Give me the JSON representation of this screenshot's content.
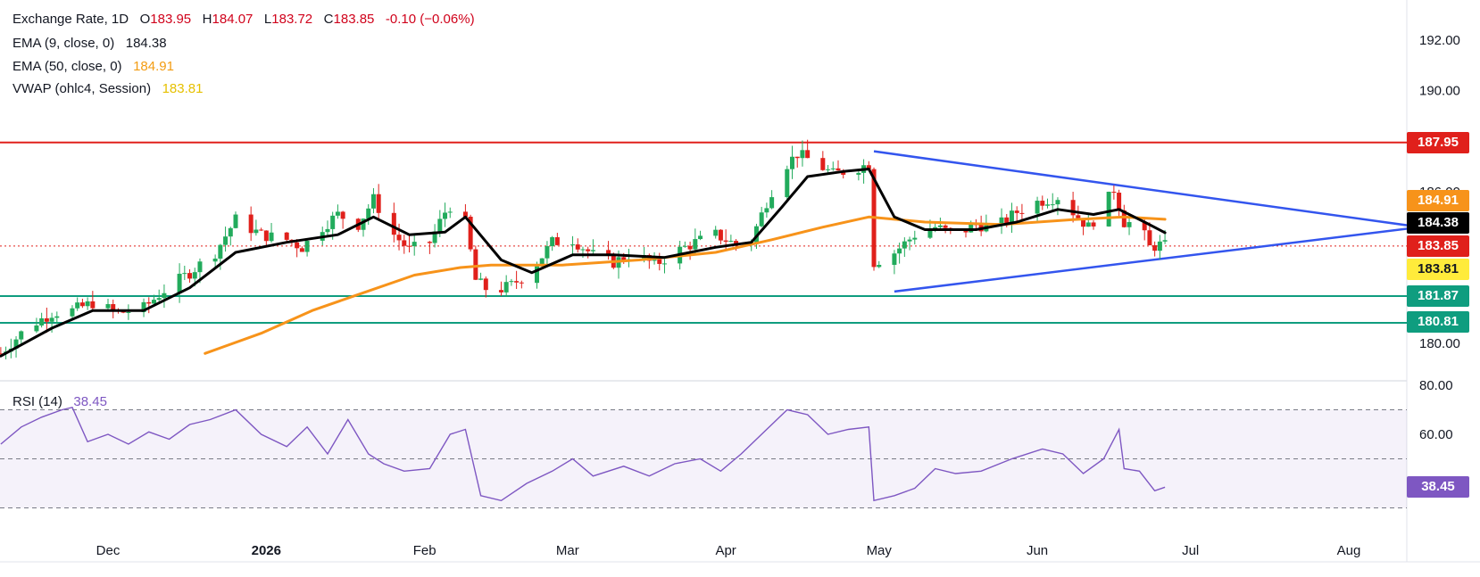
{
  "header": {
    "title": "Exchange Rate, 1D",
    "open_label": "O",
    "open": "183.95",
    "high_label": "H",
    "high": "184.07",
    "low_label": "L",
    "low": "183.72",
    "close_label": "C",
    "close": "183.85",
    "change": "-0.10 (−0.06%)",
    "ema9_label": "EMA (9, close, 0)",
    "ema9_value": "184.38",
    "ema50_label": "EMA (50, close, 0)",
    "ema50_value": "184.91",
    "vwap_label": "VWAP (ohlc4, Session)",
    "vwap_value": "183.81",
    "rsi_label": "RSI (14)",
    "rsi_value": "38.45"
  },
  "price_labels": [
    {
      "text": "187.95",
      "color": "#e0201b"
    },
    {
      "text": "184.91",
      "color": "#f7931a"
    },
    {
      "text": "184.38",
      "color": "#000000"
    },
    {
      "text": "183.85",
      "color": "#e0201b"
    },
    {
      "text": "183.81",
      "color": "#ffeb3b"
    },
    {
      "text": "181.87",
      "color": "#0f9d7f"
    },
    {
      "text": "180.81",
      "color": "#0f9d7f"
    },
    {
      "text": "38.45",
      "color": "#7e57c2"
    }
  ],
  "chart_data": {
    "type": "candlestick",
    "price_axis": {
      "ticks": [
        "192.00",
        "190.00",
        "186.00",
        "180.00"
      ],
      "range": [
        179.5,
        193.5
      ]
    },
    "rsi_axis": {
      "ticks": [
        "80.00",
        "60.00"
      ],
      "range": [
        20,
        80
      ],
      "bands": [
        70,
        50,
        30
      ]
    },
    "time_axis": [
      "Dec",
      "2026",
      "Feb",
      "Mar",
      "Apr",
      "May",
      "Jun",
      "Jul",
      "Aug"
    ],
    "horizontal_levels": [
      {
        "value": 187.95,
        "color": "#e0201b"
      },
      {
        "value": 181.87,
        "color": "#0f9d7f"
      },
      {
        "value": 180.81,
        "color": "#0f9d7f"
      }
    ],
    "triangle_upper": [
      [
        "2026-04-30",
        187.6
      ],
      [
        "2026-08-15",
        184.6
      ]
    ],
    "triangle_lower": [
      [
        "2026-05-04",
        182.05
      ],
      [
        "2026-08-15",
        184.6
      ]
    ],
    "close_path": [
      [
        "2025-11-10",
        179.6
      ],
      [
        "2025-11-15",
        180.6
      ],
      [
        "2025-11-20",
        181.2
      ],
      [
        "2025-11-24",
        181.3
      ],
      [
        "2025-11-28",
        181.6
      ],
      [
        "2025-12-03",
        181.2
      ],
      [
        "2025-12-08",
        181.4
      ],
      [
        "2025-12-12",
        182.1
      ],
      [
        "2025-12-17",
        182.8
      ],
      [
        "2025-12-22",
        183.6
      ],
      [
        "2025-12-26",
        184.9
      ],
      [
        "2025-12-31",
        184.3
      ],
      [
        "2026-01-05",
        184.1
      ],
      [
        "2026-01-08",
        183.8
      ],
      [
        "2026-01-12",
        184.6
      ],
      [
        "2026-01-15",
        185.1
      ],
      [
        "2026-01-19",
        184.7
      ],
      [
        "2026-01-22",
        185.7
      ],
      [
        "2026-01-26",
        184.3
      ],
      [
        "2026-01-29",
        183.7
      ],
      [
        "2026-02-02",
        184.0
      ],
      [
        "2026-02-05",
        185.2
      ],
      [
        "2026-02-08",
        185.9
      ],
      [
        "2026-02-11",
        182.5
      ],
      [
        "2026-02-14",
        182.0
      ],
      [
        "2026-02-18",
        182.3
      ],
      [
        "2026-02-22",
        182.9
      ],
      [
        "2026-02-26",
        184.0
      ],
      [
        "2026-03-02",
        184.1
      ],
      [
        "2026-03-06",
        183.5
      ],
      [
        "2026-03-10",
        183.2
      ],
      [
        "2026-03-14",
        183.6
      ],
      [
        "2026-03-18",
        183.1
      ],
      [
        "2026-03-22",
        183.6
      ],
      [
        "2026-03-26",
        184.0
      ],
      [
        "2026-03-30",
        184.3
      ],
      [
        "2026-04-03",
        183.9
      ],
      [
        "2026-04-06",
        184.1
      ],
      [
        "2026-04-09",
        185.6
      ],
      [
        "2026-04-12",
        186.9
      ],
      [
        "2026-04-15",
        187.5
      ],
      [
        "2026-04-18",
        187.2
      ],
      [
        "2026-04-22",
        186.7
      ],
      [
        "2026-04-26",
        186.9
      ],
      [
        "2026-04-29",
        187.1
      ],
      [
        "2026-04-30",
        183.2
      ],
      [
        "2026-05-04",
        183.6
      ],
      [
        "2026-05-08",
        184.3
      ],
      [
        "2026-05-12",
        184.6
      ],
      [
        "2026-05-16",
        184.3
      ],
      [
        "2026-05-20",
        184.7
      ],
      [
        "2026-05-24",
        184.6
      ],
      [
        "2026-05-28",
        185.2
      ],
      [
        "2026-06-01",
        185.6
      ],
      [
        "2026-06-05",
        185.8
      ],
      [
        "2026-06-08",
        185.2
      ],
      [
        "2026-06-11",
        184.6
      ],
      [
        "2026-06-14",
        185.4
      ],
      [
        "2026-06-16",
        186.1
      ],
      [
        "2026-06-18",
        184.8
      ],
      [
        "2026-06-21",
        184.7
      ],
      [
        "2026-06-23",
        183.8
      ],
      [
        "2026-06-25",
        183.9
      ],
      [
        "2026-06-26",
        183.85
      ]
    ],
    "ema9": [
      [
        "2025-11-10",
        179.5
      ],
      [
        "2025-11-20",
        180.6
      ],
      [
        "2025-11-28",
        181.3
      ],
      [
        "2025-12-08",
        181.3
      ],
      [
        "2025-12-17",
        182.2
      ],
      [
        "2025-12-26",
        183.6
      ],
      [
        "2026-01-05",
        184.0
      ],
      [
        "2026-01-15",
        184.3
      ],
      [
        "2026-01-22",
        185.0
      ],
      [
        "2026-01-29",
        184.3
      ],
      [
        "2026-02-05",
        184.4
      ],
      [
        "2026-02-09",
        185.0
      ],
      [
        "2026-02-16",
        183.3
      ],
      [
        "2026-02-22",
        182.8
      ],
      [
        "2026-03-02",
        183.5
      ],
      [
        "2026-03-10",
        183.5
      ],
      [
        "2026-03-20",
        183.4
      ],
      [
        "2026-03-30",
        183.8
      ],
      [
        "2026-04-06",
        184.0
      ],
      [
        "2026-04-12",
        185.4
      ],
      [
        "2026-04-17",
        186.6
      ],
      [
        "2026-04-24",
        186.8
      ],
      [
        "2026-04-29",
        186.9
      ],
      [
        "2026-05-04",
        185.0
      ],
      [
        "2026-05-10",
        184.5
      ],
      [
        "2026-05-20",
        184.5
      ],
      [
        "2026-05-28",
        184.8
      ],
      [
        "2026-06-05",
        185.3
      ],
      [
        "2026-06-12",
        185.1
      ],
      [
        "2026-06-17",
        185.3
      ],
      [
        "2026-06-22",
        184.8
      ],
      [
        "2026-06-26",
        184.38
      ]
    ],
    "ema50": [
      [
        "2025-12-20",
        179.6
      ],
      [
        "2025-12-31",
        180.4
      ],
      [
        "2026-01-10",
        181.3
      ],
      [
        "2026-01-20",
        182.0
      ],
      [
        "2026-01-30",
        182.7
      ],
      [
        "2026-02-08",
        183.0
      ],
      [
        "2026-02-14",
        183.1
      ],
      [
        "2026-02-28",
        183.1
      ],
      [
        "2026-03-15",
        183.3
      ],
      [
        "2026-03-30",
        183.6
      ],
      [
        "2026-04-10",
        184.1
      ],
      [
        "2026-04-20",
        184.6
      ],
      [
        "2026-04-29",
        185.0
      ],
      [
        "2026-05-10",
        184.8
      ],
      [
        "2026-05-25",
        184.7
      ],
      [
        "2026-06-08",
        184.9
      ],
      [
        "2026-06-18",
        185.0
      ],
      [
        "2026-06-26",
        184.91
      ]
    ],
    "rsi": [
      [
        "2025-11-10",
        56
      ],
      [
        "2025-11-14",
        63
      ],
      [
        "2025-11-18",
        67
      ],
      [
        "2025-11-22",
        70
      ],
      [
        "2025-11-24",
        71
      ],
      [
        "2025-11-27",
        57
      ],
      [
        "2025-12-01",
        60
      ],
      [
        "2025-12-05",
        56
      ],
      [
        "2025-12-09",
        61
      ],
      [
        "2025-12-13",
        58
      ],
      [
        "2025-12-17",
        64
      ],
      [
        "2025-12-21",
        66
      ],
      [
        "2025-12-26",
        70
      ],
      [
        "2025-12-31",
        60
      ],
      [
        "2026-01-05",
        55
      ],
      [
        "2026-01-09",
        63
      ],
      [
        "2026-01-13",
        52
      ],
      [
        "2026-01-17",
        66
      ],
      [
        "2026-01-21",
        52
      ],
      [
        "2026-01-24",
        48
      ],
      [
        "2026-01-28",
        45
      ],
      [
        "2026-02-02",
        46
      ],
      [
        "2026-02-06",
        60
      ],
      [
        "2026-02-09",
        62
      ],
      [
        "2026-02-12",
        35
      ],
      [
        "2026-02-16",
        33
      ],
      [
        "2026-02-21",
        40
      ],
      [
        "2026-02-26",
        45
      ],
      [
        "2026-03-02",
        50
      ],
      [
        "2026-03-06",
        43
      ],
      [
        "2026-03-12",
        47
      ],
      [
        "2026-03-17",
        43
      ],
      [
        "2026-03-22",
        48
      ],
      [
        "2026-03-27",
        50
      ],
      [
        "2026-03-31",
        45
      ],
      [
        "2026-04-04",
        52
      ],
      [
        "2026-04-09",
        62
      ],
      [
        "2026-04-13",
        70
      ],
      [
        "2026-04-17",
        68
      ],
      [
        "2026-04-21",
        60
      ],
      [
        "2026-04-25",
        62
      ],
      [
        "2026-04-29",
        63
      ],
      [
        "2026-04-30",
        33
      ],
      [
        "2026-05-04",
        35
      ],
      [
        "2026-05-08",
        38
      ],
      [
        "2026-05-12",
        46
      ],
      [
        "2026-05-16",
        44
      ],
      [
        "2026-05-21",
        45
      ],
      [
        "2026-05-27",
        50
      ],
      [
        "2026-06-02",
        54
      ],
      [
        "2026-06-06",
        52
      ],
      [
        "2026-06-10",
        44
      ],
      [
        "2026-06-14",
        50
      ],
      [
        "2026-06-17",
        62
      ],
      [
        "2026-06-18",
        46
      ],
      [
        "2026-06-21",
        45
      ],
      [
        "2026-06-24",
        37
      ],
      [
        "2026-06-26",
        38.45
      ]
    ]
  }
}
